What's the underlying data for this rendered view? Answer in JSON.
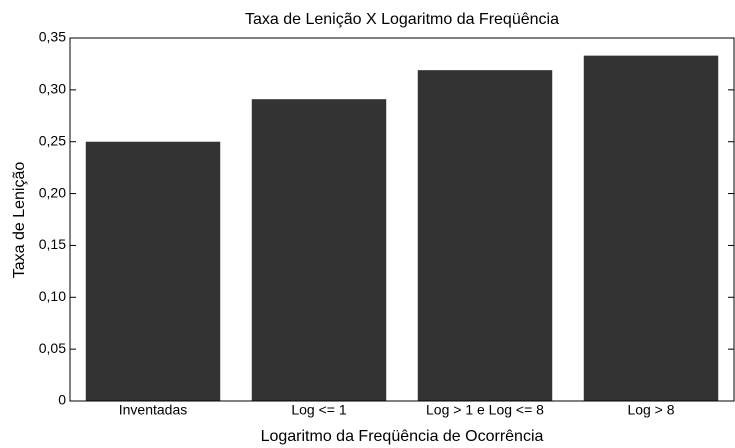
{
  "chart_data": {
    "type": "bar",
    "title": "Taxa de Lenição X Logaritmo da Freqüência",
    "x_label": "Logaritmo da Freqüência de Ocorrência",
    "y_label": "Taxa de Lenição",
    "categories": [
      "Inventadas",
      "Log <= 1",
      "Log > 1 e Log <= 8",
      "Log > 8"
    ],
    "values": [
      0.25,
      0.291,
      0.319,
      0.333
    ],
    "color": "#333333",
    "ylim": [
      0,
      0.35
    ],
    "yticks": [
      0,
      {
        "value": 0.05,
        "label": "0,05"
      },
      {
        "value": 0.1,
        "label": "0,10"
      },
      {
        "value": 0.15,
        "label": "0,15"
      },
      {
        "value": 0.2,
        "label": "0,20"
      },
      {
        "value": 0.25,
        "label": "0,25"
      },
      {
        "value": 0.3,
        "label": "0,30"
      },
      {
        "value": 0.35,
        "label": "0,35"
      }
    ],
    "grid": false
  }
}
